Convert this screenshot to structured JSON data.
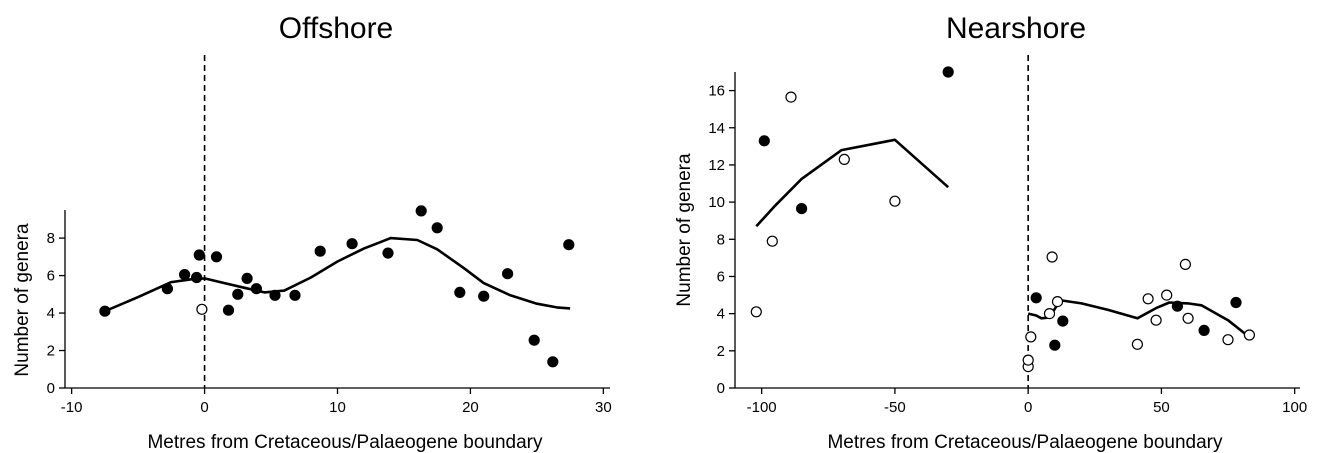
{
  "chart_data": [
    {
      "type": "scatter",
      "title": "Offshore",
      "xlabel": "Metres from Cretaceous/Palaeogene boundary",
      "ylabel": "Number of genera",
      "xlim": [
        -10.5,
        30.5
      ],
      "ylim": [
        0,
        9.5
      ],
      "xticks": [
        -10,
        0,
        10,
        20,
        30
      ],
      "yticks": [
        0,
        2,
        4,
        6,
        8
      ],
      "boundary_x": 0,
      "series": [
        {
          "marker": "filled",
          "points": [
            [
              -7.5,
              4.1
            ],
            [
              -2.8,
              5.3
            ],
            [
              -1.5,
              6.05
            ],
            [
              -0.6,
              5.9
            ],
            [
              -0.4,
              7.1
            ],
            [
              0.9,
              7.0
            ],
            [
              1.8,
              4.15
            ],
            [
              2.5,
              5.0
            ],
            [
              3.2,
              5.85
            ],
            [
              3.9,
              5.3
            ],
            [
              5.3,
              4.95
            ],
            [
              6.8,
              4.95
            ],
            [
              8.7,
              7.3
            ],
            [
              11.1,
              7.7
            ],
            [
              13.8,
              7.2
            ],
            [
              16.3,
              9.45
            ],
            [
              17.5,
              8.55
            ],
            [
              19.2,
              5.1
            ],
            [
              21.0,
              4.9
            ],
            [
              22.8,
              6.1
            ],
            [
              24.8,
              2.55
            ],
            [
              26.2,
              1.4
            ],
            [
              27.4,
              7.65
            ]
          ]
        },
        {
          "marker": "open",
          "points": [
            [
              -0.2,
              4.2
            ]
          ]
        },
        {
          "marker": "line",
          "points": [
            [
              -7.5,
              4.1
            ],
            [
              -5.0,
              4.85
            ],
            [
              -2.5,
              5.65
            ],
            [
              -1.0,
              5.8
            ],
            [
              0.0,
              5.85
            ],
            [
              1.5,
              5.6
            ],
            [
              3.0,
              5.35
            ],
            [
              4.5,
              5.1
            ],
            [
              6.0,
              5.2
            ],
            [
              8.0,
              5.9
            ],
            [
              10.0,
              6.75
            ],
            [
              12.0,
              7.45
            ],
            [
              14.0,
              8.0
            ],
            [
              16.0,
              7.9
            ],
            [
              17.5,
              7.4
            ],
            [
              19.5,
              6.4
            ],
            [
              21.0,
              5.6
            ],
            [
              23.0,
              4.95
            ],
            [
              25.0,
              4.5
            ],
            [
              26.5,
              4.3
            ],
            [
              27.5,
              4.25
            ]
          ]
        }
      ]
    },
    {
      "type": "scatter",
      "title": "Nearshore",
      "xlabel": "Metres from Cretaceous/Palaeogene boundary",
      "ylabel": "Number of genera",
      "xlim": [
        -110,
        102
      ],
      "ylim": [
        0,
        17
      ],
      "xticks": [
        -100,
        -50,
        0,
        50,
        100
      ],
      "yticks": [
        0,
        2,
        4,
        6,
        8,
        10,
        12,
        14,
        16
      ],
      "boundary_x": 0,
      "series": [
        {
          "marker": "filled",
          "points": [
            [
              -99,
              13.3
            ],
            [
              -85,
              9.65
            ],
            [
              -30,
              17.0
            ],
            [
              3,
              4.85
            ],
            [
              10,
              2.3
            ],
            [
              13,
              3.6
            ],
            [
              56,
              4.4
            ],
            [
              66,
              3.1
            ],
            [
              78,
              4.6
            ]
          ]
        },
        {
          "marker": "open",
          "points": [
            [
              -102,
              4.1
            ],
            [
              -96,
              7.9
            ],
            [
              -89,
              15.65
            ],
            [
              -69,
              12.3
            ],
            [
              -50,
              10.05
            ],
            [
              0,
              1.15
            ],
            [
              0,
              1.5
            ],
            [
              1,
              2.75
            ],
            [
              8,
              4.0
            ],
            [
              9,
              7.05
            ],
            [
              11,
              4.65
            ],
            [
              41,
              2.35
            ],
            [
              45,
              4.8
            ],
            [
              48,
              3.65
            ],
            [
              52,
              5.0
            ],
            [
              59,
              6.65
            ],
            [
              60,
              3.75
            ],
            [
              75,
              2.6
            ],
            [
              83,
              2.85
            ]
          ]
        },
        {
          "marker": "line",
          "segments": [
            [
              [
                -102,
                8.7
              ],
              [
                -95,
                9.8
              ],
              [
                -85,
                11.25
              ],
              [
                -70,
                12.8
              ],
              [
                -50,
                13.35
              ],
              [
                -30,
                10.8
              ]
            ],
            [
              [
                0,
                4.0
              ],
              [
                3,
                3.9
              ],
              [
                5,
                3.75
              ],
              [
                8,
                3.8
              ],
              [
                11,
                4.5
              ],
              [
                13,
                4.7
              ],
              [
                20,
                4.55
              ],
              [
                30,
                4.2
              ],
              [
                41,
                3.75
              ],
              [
                48,
                4.3
              ],
              [
                53,
                4.6
              ],
              [
                60,
                4.55
              ],
              [
                65,
                4.45
              ],
              [
                75,
                3.65
              ],
              [
                82,
                2.85
              ]
            ]
          ]
        }
      ]
    }
  ]
}
